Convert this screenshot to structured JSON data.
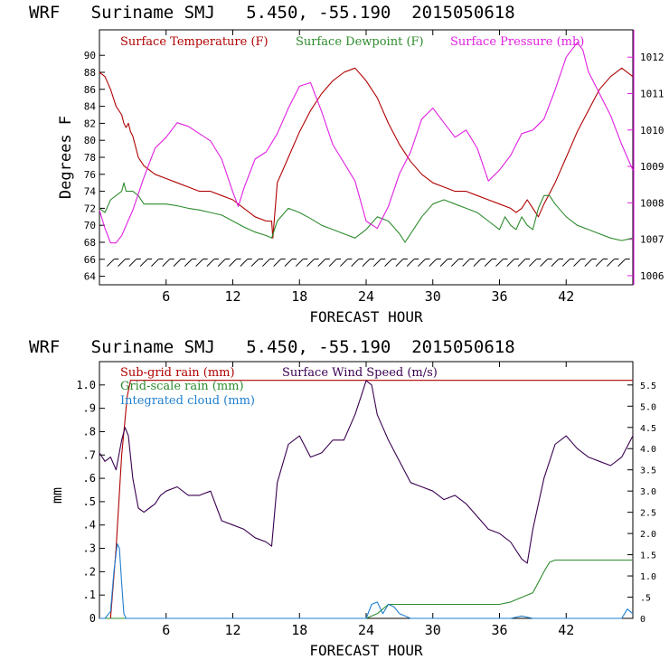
{
  "colors": {
    "temperature": "#b00000",
    "dewpoint": "#2e8b2e",
    "pressure": "#e020e0",
    "subgrid_rain": "#b00000",
    "grid_rain": "#2e8b2e",
    "cloud": "#1f7fd0",
    "wind": "#3a0050",
    "barbs": "#000000",
    "axis": "#000000"
  },
  "chart_data": [
    {
      "type": "line",
      "title": "WRF   Suriname SMJ   5.450, -55.190  2015050618",
      "xlabel": "FORECAST HOUR",
      "ylabel": "Degrees F",
      "xlim": [
        0,
        48
      ],
      "ylim": [
        63,
        93
      ],
      "y2lim": [
        1005.75,
        1012.75
      ],
      "xticks": [
        6,
        12,
        18,
        24,
        30,
        36,
        42
      ],
      "yticks": [
        64,
        66,
        68,
        70,
        72,
        74,
        76,
        78,
        80,
        82,
        84,
        86,
        88,
        90
      ],
      "y2ticks": [
        1006,
        1007,
        1008,
        1009,
        1010,
        1011,
        1012
      ],
      "legend": [
        "Surface Temperature (F)",
        "Surface Dewpoint (F)",
        "Surface Pressure (mb)"
      ],
      "series": [
        {
          "name": "Surface Temperature (F)",
          "axis": "left",
          "x": [
            0,
            0.5,
            1,
            1.5,
            2,
            2.2,
            2.4,
            2.6,
            2.8,
            3,
            3.5,
            4,
            5,
            6,
            7,
            8,
            9,
            10,
            11,
            12,
            13,
            14,
            15,
            15.5,
            15.6,
            16,
            17,
            18,
            19,
            20,
            21,
            22,
            23,
            24,
            25,
            26,
            27,
            28,
            29,
            30,
            31,
            32,
            33,
            34,
            35,
            36,
            37,
            37.5,
            38,
            38.5,
            39,
            39.5,
            40,
            41,
            42,
            43,
            44,
            45,
            46,
            47,
            48
          ],
          "values": [
            88,
            87.5,
            86,
            84,
            83,
            82,
            81.5,
            82,
            81,
            80.5,
            78,
            77,
            76,
            75.5,
            75,
            74.5,
            74,
            74,
            73.5,
            73,
            72,
            71,
            70.5,
            70.5,
            68.5,
            75,
            78,
            81,
            83.5,
            85.5,
            87,
            88,
            88.5,
            87,
            85,
            82,
            79.5,
            77.5,
            76,
            75,
            74.5,
            74,
            74,
            73.5,
            73,
            72.5,
            72,
            71.5,
            72,
            73,
            72,
            71,
            72.5,
            75,
            78,
            81,
            83.5,
            86,
            87.5,
            88.5,
            87.5
          ]
        },
        {
          "name": "Surface Dewpoint (F)",
          "axis": "left",
          "x": [
            0,
            0.5,
            1,
            1.5,
            2,
            2.2,
            2.4,
            2.6,
            3,
            3.5,
            4,
            5,
            6,
            7,
            8,
            9,
            10,
            11,
            12,
            13,
            14,
            15,
            15.5,
            16,
            17,
            18,
            19,
            20,
            21,
            22,
            23,
            24,
            25,
            26,
            27,
            27.5,
            28,
            29,
            30,
            31,
            32,
            33,
            34,
            35,
            36,
            36.5,
            37,
            37.5,
            38,
            38.5,
            39,
            39.5,
            40,
            40.5,
            41,
            42,
            43,
            44,
            45,
            46,
            47,
            48
          ],
          "values": [
            72,
            71.5,
            73,
            73.5,
            74,
            75,
            74,
            74,
            74,
            73.5,
            72.5,
            72.5,
            72.5,
            72.3,
            72,
            71.8,
            71.5,
            71.2,
            70.5,
            69.8,
            69.2,
            68.8,
            68.5,
            70.5,
            72,
            71.5,
            70.8,
            70,
            69.5,
            69,
            68.5,
            69.5,
            71,
            70.5,
            69,
            68,
            69,
            71,
            72.5,
            73,
            72.5,
            72,
            71.5,
            70.5,
            69.5,
            71,
            70,
            69.5,
            71,
            70,
            69.5,
            72,
            73.5,
            73.5,
            72.5,
            71,
            70,
            69.5,
            69,
            68.5,
            68.2,
            68.5
          ]
        },
        {
          "name": "Surface Pressure (mb)",
          "axis": "right",
          "x": [
            0,
            0.5,
            1,
            1.5,
            2,
            3,
            4,
            5,
            6,
            7,
            8,
            9,
            10,
            11,
            12,
            12.5,
            13,
            14,
            15,
            16,
            17,
            18,
            19,
            20,
            21,
            22,
            23,
            24,
            25,
            26,
            27,
            28,
            29,
            30,
            31,
            32,
            33,
            34,
            35,
            36,
            37,
            38,
            39,
            40,
            41,
            42,
            43,
            43.5,
            44,
            45,
            46,
            47,
            48
          ],
          "values": [
            1007.8,
            1007.3,
            1006.9,
            1006.9,
            1007.1,
            1007.8,
            1008.7,
            1009.5,
            1009.8,
            1010.2,
            1010.1,
            1009.9,
            1009.7,
            1009.2,
            1008.3,
            1007.9,
            1008.4,
            1009.2,
            1009.4,
            1009.9,
            1010.6,
            1011.2,
            1011.3,
            1010.5,
            1009.6,
            1009.1,
            1008.6,
            1007.5,
            1007.3,
            1007.9,
            1008.8,
            1009.4,
            1010.3,
            1010.6,
            1010.2,
            1009.8,
            1010,
            1009.5,
            1008.6,
            1008.9,
            1009.3,
            1009.9,
            1010,
            1010.3,
            1011.1,
            1012,
            1012.4,
            1012.2,
            1011.6,
            1011,
            1010.4,
            1009.6,
            1008.9
          ]
        }
      ]
    },
    {
      "type": "line",
      "title": "WRF   Suriname SMJ   5.450, -55.190  2015050618",
      "xlabel": "FORECAST HOUR",
      "ylabel": "mm",
      "xlim": [
        0,
        48
      ],
      "ylim": [
        0,
        1.1
      ],
      "y2lim": [
        0,
        6.05
      ],
      "xticks": [
        6,
        12,
        18,
        24,
        30,
        36,
        42
      ],
      "xtick_labels": [
        "6",
        "12",
        "18",
        "24",
        "30",
        "36",
        "42"
      ],
      "yticks": [
        0,
        0.1,
        0.2,
        0.3,
        0.4,
        0.5,
        0.6,
        0.7,
        0.8,
        0.9,
        1.0
      ],
      "ytick_labels": [
        "0",
        ".1",
        ".2",
        ".3",
        ".4",
        ".5",
        ".6",
        ".7",
        ".8",
        ".9",
        "1.0"
      ],
      "y2ticks": [
        0,
        0.5,
        1.0,
        1.5,
        2.0,
        2.5,
        3.0,
        3.5,
        4.0,
        4.5,
        5.0,
        5.5
      ],
      "y2tick_labels": [
        "0",
        ".5",
        "1.0",
        "1.5",
        "2.0",
        "2.5",
        "3.0",
        "3.5",
        "4.0",
        "4.5",
        "5.0",
        "5.5"
      ],
      "legend": [
        "Sub-grid rain (mm)",
        "Surface Wind Speed (m/s)",
        "Grid-scale rain (mm)",
        "Integrated cloud (mm)"
      ],
      "series": [
        {
          "name": "Sub-grid rain (mm)",
          "axis": "left",
          "x": [
            0,
            1,
            1.5,
            2,
            2.5,
            2.8,
            48
          ],
          "values": [
            0,
            0,
            0.3,
            0.7,
            0.95,
            1.02,
            1.02
          ]
        },
        {
          "name": "Grid-scale rain (mm)",
          "axis": "left",
          "x": [
            0,
            24,
            25,
            26,
            36,
            37,
            38,
            39,
            40,
            40.5,
            41,
            48
          ],
          "values": [
            0,
            0,
            0.02,
            0.06,
            0.06,
            0.07,
            0.09,
            0.11,
            0.2,
            0.24,
            0.25,
            0.25
          ]
        },
        {
          "name": "Integrated cloud (mm)",
          "axis": "left",
          "x": [
            0,
            0.5,
            1,
            1.3,
            1.6,
            1.8,
            2,
            2.2,
            2.4,
            24,
            24.5,
            25,
            25.5,
            26,
            26.5,
            27,
            28,
            37,
            38,
            39,
            40,
            47,
            47.5,
            48
          ],
          "values": [
            0,
            0,
            0.03,
            0.2,
            0.32,
            0.3,
            0.15,
            0.02,
            0,
            0,
            0.06,
            0.07,
            0.02,
            0.06,
            0.05,
            0.02,
            0,
            0,
            0.01,
            0,
            0,
            0,
            0.04,
            0.02
          ]
        },
        {
          "name": "Surface Wind Speed (m/s)",
          "axis": "right",
          "x": [
            0,
            0.5,
            1,
            1.5,
            2,
            2.3,
            2.6,
            3,
            3.5,
            4,
            4.5,
            5,
            5.5,
            6,
            7,
            8,
            9,
            10,
            11,
            12,
            13,
            14,
            15,
            15.5,
            16,
            17,
            18,
            19,
            20,
            21,
            22,
            23,
            23.5,
            24,
            24.5,
            25,
            26,
            27,
            28,
            29,
            30,
            31,
            32,
            33,
            34,
            35,
            36,
            37,
            38,
            38.5,
            39,
            40,
            41,
            42,
            43,
            44,
            45,
            46,
            47,
            48
          ],
          "values": [
            3.9,
            3.7,
            3.8,
            3.5,
            4.2,
            4.5,
            4.3,
            3.3,
            2.6,
            2.5,
            2.6,
            2.7,
            2.9,
            3.0,
            3.1,
            2.9,
            2.9,
            3.0,
            2.3,
            2.2,
            2.1,
            1.9,
            1.8,
            1.7,
            3.2,
            4.1,
            4.3,
            3.8,
            3.9,
            4.2,
            4.2,
            4.8,
            5.2,
            5.6,
            5.5,
            4.8,
            4.2,
            3.7,
            3.2,
            3.1,
            3.0,
            2.8,
            2.9,
            2.7,
            2.4,
            2.1,
            2.0,
            1.8,
            1.4,
            1.3,
            2.1,
            3.3,
            4.1,
            4.3,
            4.0,
            3.8,
            3.7,
            3.6,
            3.8,
            4.3
          ]
        }
      ]
    }
  ],
  "wind_barbs": {
    "hours": [
      1,
      2,
      3,
      4,
      5,
      6,
      7,
      8,
      9,
      10,
      11,
      12,
      13,
      14,
      15,
      16,
      17,
      18,
      19,
      20,
      21,
      22,
      23,
      24,
      25,
      26,
      27,
      28,
      29,
      30,
      31,
      32,
      33,
      34,
      35,
      36,
      37,
      38,
      39,
      40,
      41,
      42,
      43,
      44,
      45,
      46,
      47
    ],
    "level_degF": 65.6
  }
}
